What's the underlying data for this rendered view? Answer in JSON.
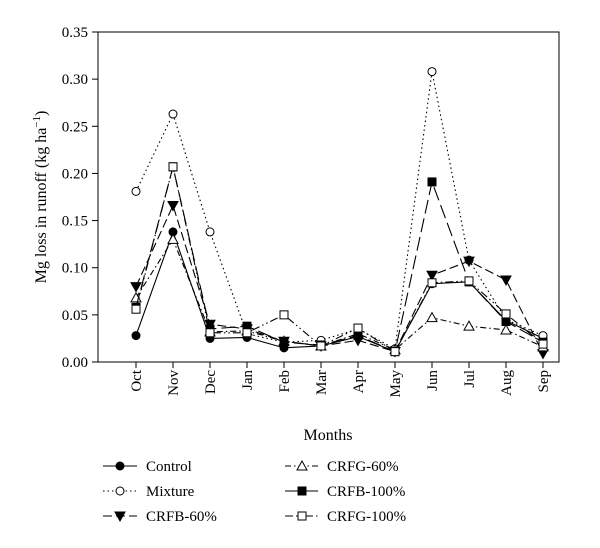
{
  "chart_data": {
    "type": "line",
    "xlabel": "Months",
    "ylabel_main": "Mg loss in runoff (kg ha",
    "ylabel_sup": "−1",
    "ylabel_tail": ")",
    "categories": [
      "Oct",
      "Nov",
      "Dec",
      "Jan",
      "Feb",
      "Mar",
      "Apr",
      "May",
      "Jun",
      "Jul",
      "Aug",
      "Sep"
    ],
    "ylim": [
      0,
      0.35
    ],
    "yticks": [
      "0.00",
      "0.05",
      "0.10",
      "0.15",
      "0.20",
      "0.25",
      "0.30",
      "0.35"
    ],
    "grid": false,
    "legend_position": "bottom",
    "series": [
      {
        "name": "Control",
        "marker": "filled-circle",
        "dash": "solid",
        "values": [
          0.028,
          0.138,
          0.025,
          0.026,
          0.015,
          0.017,
          0.027,
          0.011,
          0.083,
          0.085,
          0.044,
          0.025
        ]
      },
      {
        "name": "Mixture",
        "marker": "open-circle",
        "dash": "dotted",
        "values": [
          0.181,
          0.263,
          0.138,
          0.03,
          0.021,
          0.023,
          0.035,
          0.014,
          0.308,
          0.108,
          0.045,
          0.028
        ]
      },
      {
        "name": "CRFB-60%",
        "marker": "filled-triangle-down",
        "dash": "dashed",
        "values": [
          0.08,
          0.166,
          0.04,
          0.035,
          0.022,
          0.017,
          0.023,
          0.011,
          0.092,
          0.107,
          0.087,
          0.009
        ]
      },
      {
        "name": "CRFG-60%",
        "marker": "open-triangle-up",
        "dash": "dash-dot",
        "values": [
          0.068,
          0.13,
          0.032,
          0.033,
          0.022,
          0.017,
          0.03,
          0.013,
          0.047,
          0.038,
          0.034,
          0.016
        ]
      },
      {
        "name": "CRFB-100%",
        "marker": "filled-square",
        "dash": "long-dash",
        "values": [
          0.058,
          0.207,
          0.035,
          0.038,
          0.021,
          0.018,
          0.028,
          0.011,
          0.191,
          0.085,
          0.043,
          0.021
        ]
      },
      {
        "name": "CRFG-100%",
        "marker": "open-square",
        "dash": "dash-dot-dot",
        "values": [
          0.056,
          0.207,
          0.031,
          0.031,
          0.05,
          0.017,
          0.036,
          0.011,
          0.084,
          0.086,
          0.051,
          0.019
        ]
      }
    ]
  }
}
